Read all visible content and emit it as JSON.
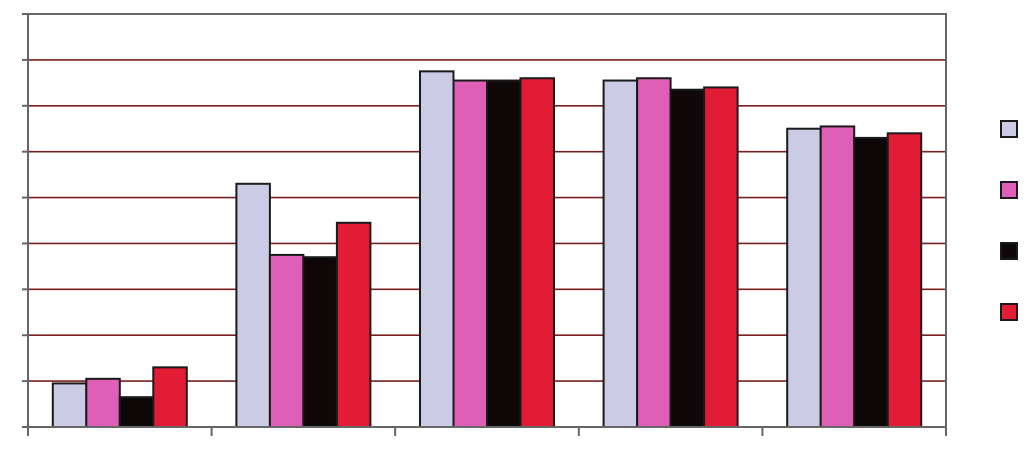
{
  "chart_data": {
    "type": "bar",
    "categories": [
      "",
      "",
      "",
      "",
      ""
    ],
    "series": [
      {
        "color": "#cccbe6",
        "values": [
          0.95,
          5.3,
          7.75,
          7.55,
          6.5
        ]
      },
      {
        "color": "#e05fb6",
        "values": [
          1.05,
          3.75,
          7.55,
          7.6,
          6.55
        ]
      },
      {
        "color": "#0e0808",
        "values": [
          0.65,
          3.7,
          7.55,
          7.35,
          6.3
        ]
      },
      {
        "color": "#e31c36",
        "values": [
          1.3,
          4.45,
          7.6,
          7.4,
          6.4
        ]
      }
    ],
    "ylim": [
      0,
      9
    ],
    "y_step": 1,
    "grid": true,
    "legend_position": "right"
  }
}
